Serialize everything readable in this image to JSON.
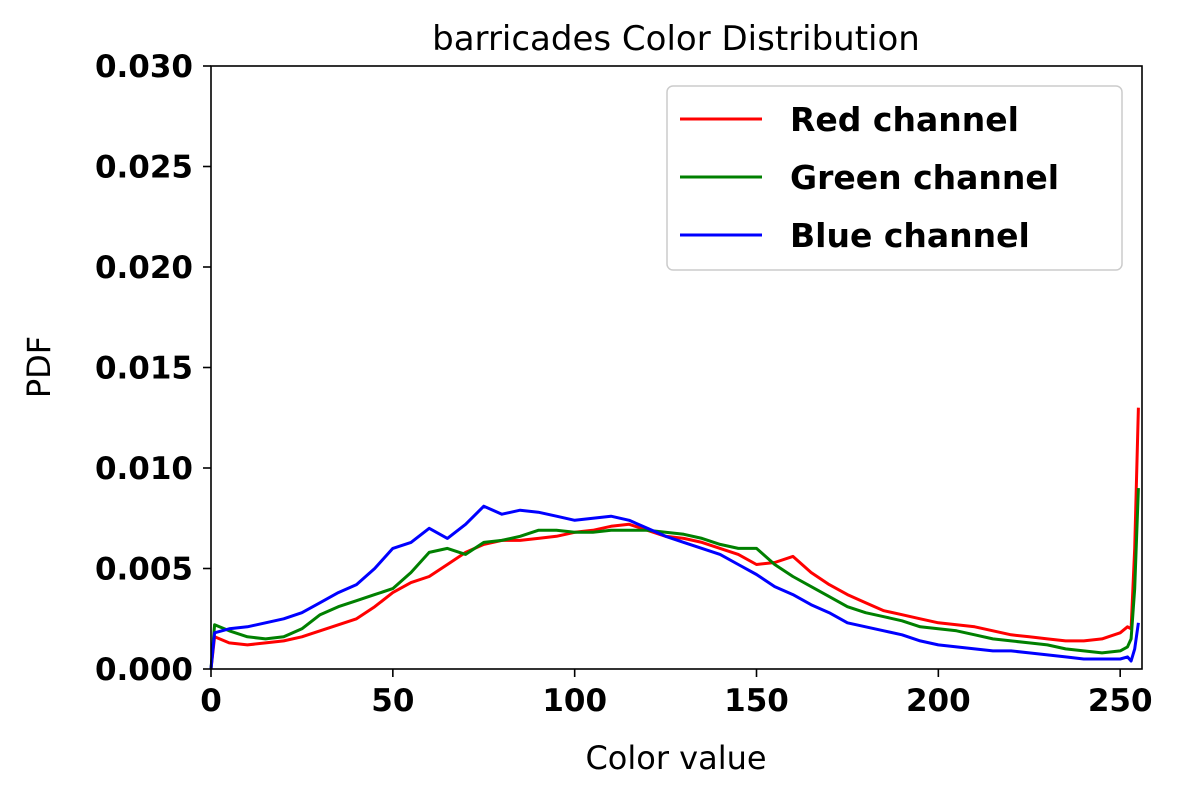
{
  "chart_data": {
    "type": "line",
    "title": "barricades Color Distribution",
    "xlabel": "Color value",
    "ylabel": "PDF",
    "xlim": [
      0,
      256
    ],
    "ylim": [
      0,
      0.03
    ],
    "x_ticks": [
      0,
      50,
      100,
      150,
      200,
      250
    ],
    "x_tick_labels": [
      "0",
      "50",
      "100",
      "150",
      "200",
      "250"
    ],
    "y_ticks": [
      0,
      0.005,
      0.01,
      0.015,
      0.02,
      0.025,
      0.03
    ],
    "y_tick_labels": [
      "0.000",
      "0.005",
      "0.010",
      "0.015",
      "0.020",
      "0.025",
      "0.030"
    ],
    "grid": false,
    "legend_position": "top-right",
    "series": [
      {
        "name": "Red channel",
        "color": "#ff0000",
        "x": [
          0,
          1,
          5,
          10,
          15,
          20,
          25,
          30,
          35,
          40,
          45,
          50,
          55,
          60,
          65,
          70,
          75,
          80,
          85,
          90,
          95,
          100,
          105,
          110,
          115,
          120,
          125,
          130,
          135,
          140,
          145,
          150,
          155,
          160,
          165,
          170,
          175,
          180,
          185,
          190,
          195,
          200,
          205,
          210,
          215,
          220,
          225,
          230,
          235,
          240,
          245,
          250,
          252,
          253,
          254,
          255
        ],
        "values": [
          0,
          0.0016,
          0.0013,
          0.0012,
          0.0013,
          0.0014,
          0.0016,
          0.0019,
          0.0022,
          0.0025,
          0.0031,
          0.0038,
          0.0043,
          0.0046,
          0.0052,
          0.0058,
          0.0062,
          0.0064,
          0.0064,
          0.0065,
          0.0066,
          0.0068,
          0.0069,
          0.0071,
          0.0072,
          0.0069,
          0.0066,
          0.0065,
          0.0063,
          0.006,
          0.0057,
          0.0052,
          0.0053,
          0.0056,
          0.0048,
          0.0042,
          0.0037,
          0.0033,
          0.0029,
          0.0027,
          0.0025,
          0.0023,
          0.0022,
          0.0021,
          0.0019,
          0.0017,
          0.0016,
          0.0015,
          0.0014,
          0.0014,
          0.0015,
          0.0018,
          0.0021,
          0.002,
          0.006,
          0.013
        ]
      },
      {
        "name": "Green channel",
        "color": "#008000",
        "x": [
          0,
          1,
          5,
          10,
          15,
          20,
          25,
          30,
          35,
          40,
          45,
          50,
          55,
          60,
          65,
          70,
          75,
          80,
          85,
          90,
          95,
          100,
          105,
          110,
          115,
          120,
          125,
          130,
          135,
          140,
          145,
          150,
          155,
          160,
          165,
          170,
          175,
          180,
          185,
          190,
          195,
          200,
          205,
          210,
          215,
          220,
          225,
          230,
          235,
          240,
          245,
          250,
          252,
          253,
          254,
          255
        ],
        "values": [
          0,
          0.0022,
          0.0019,
          0.0016,
          0.0015,
          0.0016,
          0.002,
          0.0027,
          0.0031,
          0.0034,
          0.0037,
          0.004,
          0.0048,
          0.0058,
          0.006,
          0.0057,
          0.0063,
          0.0064,
          0.0066,
          0.0069,
          0.0069,
          0.0068,
          0.0068,
          0.0069,
          0.0069,
          0.0069,
          0.0068,
          0.0067,
          0.0065,
          0.0062,
          0.006,
          0.006,
          0.0052,
          0.0046,
          0.0041,
          0.0036,
          0.0031,
          0.0028,
          0.0026,
          0.0024,
          0.0021,
          0.002,
          0.0019,
          0.0017,
          0.0015,
          0.0014,
          0.0013,
          0.0012,
          0.001,
          0.0009,
          0.0008,
          0.0009,
          0.0011,
          0.0015,
          0.004,
          0.009
        ]
      },
      {
        "name": "Blue channel",
        "color": "#0000ff",
        "x": [
          0,
          1,
          5,
          10,
          15,
          20,
          25,
          30,
          35,
          40,
          45,
          50,
          55,
          60,
          65,
          70,
          75,
          80,
          85,
          90,
          95,
          100,
          105,
          110,
          115,
          120,
          125,
          130,
          135,
          140,
          145,
          150,
          155,
          160,
          165,
          170,
          175,
          180,
          185,
          190,
          195,
          200,
          205,
          210,
          215,
          220,
          225,
          230,
          235,
          240,
          245,
          250,
          252,
          253,
          254,
          255
        ],
        "values": [
          0,
          0.0018,
          0.002,
          0.0021,
          0.0023,
          0.0025,
          0.0028,
          0.0033,
          0.0038,
          0.0042,
          0.005,
          0.006,
          0.0063,
          0.007,
          0.0065,
          0.0072,
          0.0081,
          0.0077,
          0.0079,
          0.0078,
          0.0076,
          0.0074,
          0.0075,
          0.0076,
          0.0074,
          0.007,
          0.0066,
          0.0063,
          0.006,
          0.0057,
          0.0052,
          0.0047,
          0.0041,
          0.0037,
          0.0032,
          0.0028,
          0.0023,
          0.0021,
          0.0019,
          0.0017,
          0.0014,
          0.0012,
          0.0011,
          0.001,
          0.0009,
          0.0009,
          0.0008,
          0.0007,
          0.0006,
          0.0005,
          0.0005,
          0.0005,
          0.0006,
          0.0004,
          0.001,
          0.0023
        ]
      }
    ]
  }
}
